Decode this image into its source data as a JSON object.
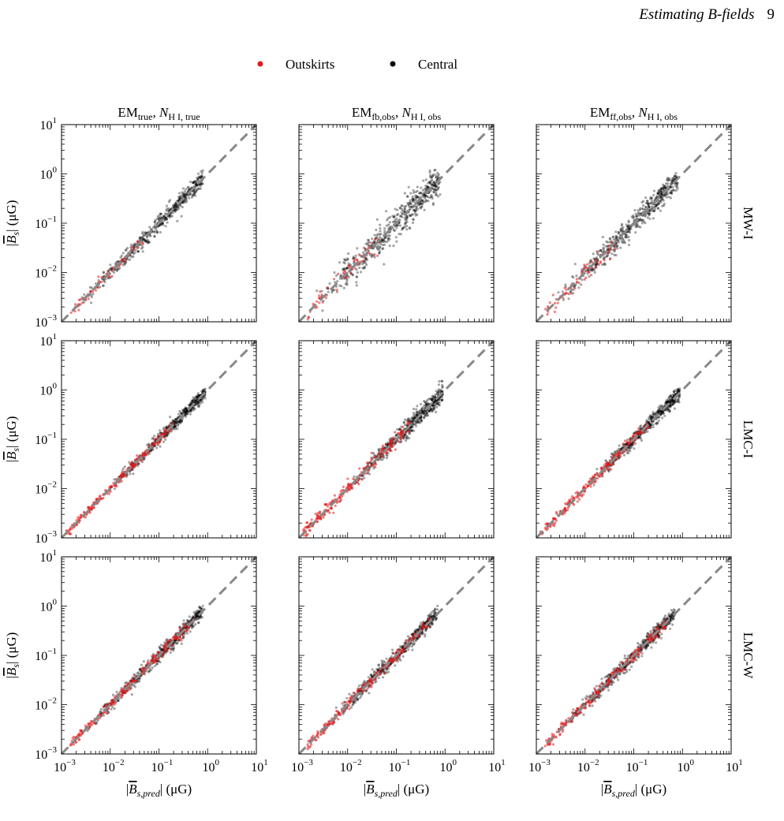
{
  "header": {
    "running_title": "Estimating B-fields",
    "page_number": "9"
  },
  "legend": {
    "position": "top-center",
    "entries": [
      {
        "label": "Outskirts",
        "color": "#e41a1c"
      },
      {
        "label": "Central",
        "color": "#000000"
      }
    ]
  },
  "colors": {
    "outskirts": "#e41a1c",
    "central": "#000000",
    "reference_line": "#888888"
  },
  "column_titles": [
    {
      "base": "EM",
      "base_sub": "true",
      "n": "N",
      "n_sub": "H I, true"
    },
    {
      "base": "EM",
      "base_sub": "fb,obs",
      "n": "N",
      "n_sub": "H I, obs"
    },
    {
      "base": "EM",
      "base_sub": "ff,obs",
      "n": "N",
      "n_sub": "H I, obs"
    }
  ],
  "row_labels": [
    "MW-I",
    "LMC-I",
    "LMC-W"
  ],
  "axis_labels": {
    "ylabel": {
      "pre": "|",
      "sym": "B",
      "sub": "s",
      "post": "| (μG)"
    },
    "xlabel": {
      "pre": "|",
      "sym": "B",
      "sub": "s,pred",
      "post": "| (μG)"
    }
  },
  "caption_fragment": "",
  "chart_data": {
    "type": "scatter",
    "layout": "3x3 grid, shared log axes",
    "xscale": "log",
    "yscale": "log",
    "xlim": [
      0.001,
      10
    ],
    "ylim": [
      0.001,
      10
    ],
    "ticks": [
      0.001,
      0.01,
      0.1,
      1,
      10
    ],
    "tick_labels": [
      {
        "base": "10",
        "exp": "−3"
      },
      {
        "base": "10",
        "exp": "−2"
      },
      {
        "base": "10",
        "exp": "−1"
      },
      {
        "base": "10",
        "exp": "0"
      },
      {
        "base": "10",
        "exp": "1"
      }
    ],
    "reference_line": {
      "style": "dashed",
      "relation": "y = x"
    },
    "panels": [
      {
        "row": "MW-I",
        "column": 0,
        "central_x_range": [
          0.002,
          0.8
        ],
        "outskirts_x_range": [
          0.0015,
          0.05
        ],
        "scatter_dex": 0.08
      },
      {
        "row": "MW-I",
        "column": 1,
        "central_x_range": [
          0.002,
          0.8
        ],
        "outskirts_x_range": [
          0.0015,
          0.05
        ],
        "scatter_dex": 0.15
      },
      {
        "row": "MW-I",
        "column": 2,
        "central_x_range": [
          0.002,
          0.8
        ],
        "outskirts_x_range": [
          0.0015,
          0.05
        ],
        "scatter_dex": 0.11
      },
      {
        "row": "LMC-I",
        "column": 0,
        "central_x_range": [
          0.01,
          0.9
        ],
        "outskirts_x_range": [
          0.0012,
          0.2
        ],
        "scatter_dex": 0.06
      },
      {
        "row": "LMC-I",
        "column": 1,
        "central_x_range": [
          0.01,
          0.9
        ],
        "outskirts_x_range": [
          0.0012,
          0.2
        ],
        "scatter_dex": 0.09
      },
      {
        "row": "LMC-I",
        "column": 2,
        "central_x_range": [
          0.01,
          0.9
        ],
        "outskirts_x_range": [
          0.0012,
          0.2
        ],
        "scatter_dex": 0.07
      },
      {
        "row": "LMC-W",
        "column": 0,
        "central_x_range": [
          0.003,
          0.8
        ],
        "outskirts_x_range": [
          0.0015,
          0.5
        ],
        "scatter_dex": 0.07
      },
      {
        "row": "LMC-W",
        "column": 1,
        "central_x_range": [
          0.003,
          0.7
        ],
        "outskirts_x_range": [
          0.0015,
          0.5
        ],
        "scatter_dex": 0.07
      },
      {
        "row": "LMC-W",
        "column": 2,
        "central_x_range": [
          0.003,
          0.7
        ],
        "outskirts_x_range": [
          0.0015,
          0.5
        ],
        "scatter_dex": 0.07
      }
    ],
    "grid": false
  }
}
